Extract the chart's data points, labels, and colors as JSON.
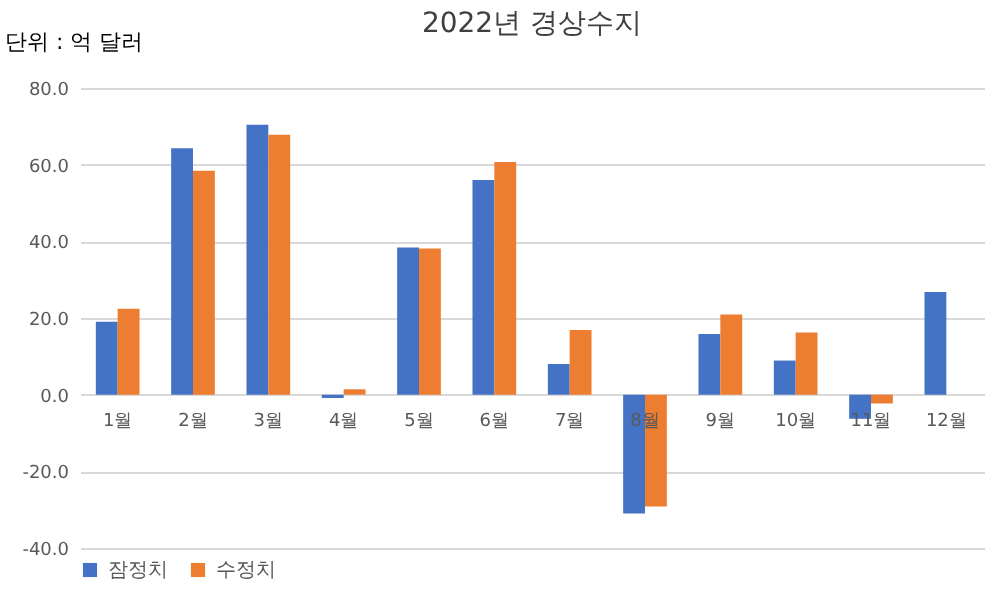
{
  "chart_data": {
    "type": "bar",
    "title": "2022년 경상수지",
    "annotations": [
      "단위 : 억 달러"
    ],
    "categories": [
      "1월",
      "2월",
      "3월",
      "4월",
      "5월",
      "6월",
      "7월",
      "8월",
      "9월",
      "10월",
      "11월",
      "12월"
    ],
    "series": [
      {
        "name": "잠정치",
        "color": "#4472c4",
        "values": [
          19.0,
          64.3,
          70.4,
          -0.9,
          38.4,
          56.0,
          8.0,
          -31.0,
          15.8,
          8.9,
          -6.3,
          26.8
        ]
      },
      {
        "name": "수정치",
        "color": "#ed7d31",
        "values": [
          22.4,
          58.4,
          67.8,
          1.4,
          38.1,
          60.7,
          16.9,
          -29.2,
          20.9,
          16.2,
          -2.3,
          null
        ]
      }
    ],
    "ylim": [
      -40,
      80
    ],
    "yticks": [
      {
        "value": -40,
        "label": "-40.0"
      },
      {
        "value": -20,
        "label": "-20.0"
      },
      {
        "value": 0,
        "label": "0.0"
      },
      {
        "value": 20,
        "label": "20.0"
      },
      {
        "value": 40,
        "label": "40.0"
      },
      {
        "value": 60,
        "label": "60.0"
      },
      {
        "value": 80,
        "label": "80.0"
      }
    ],
    "grid": "y",
    "legend": "bottom"
  }
}
